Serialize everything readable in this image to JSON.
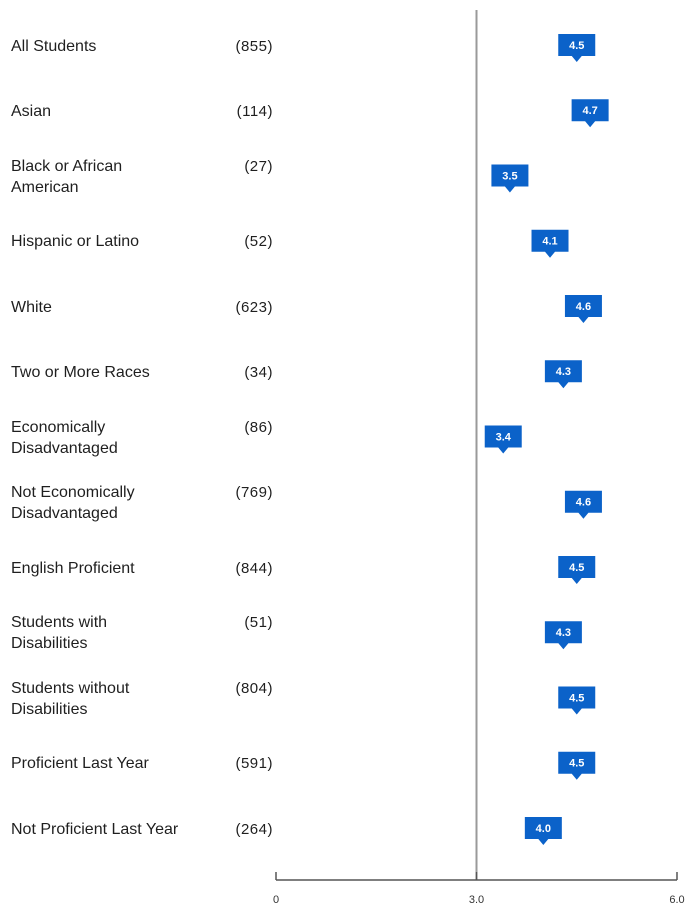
{
  "chart_data": {
    "type": "marker",
    "categories": [
      "All Students",
      "Asian",
      "Black or African American",
      "Hispanic or Latino",
      "White",
      "Two or More Races",
      "Economically Disadvantaged",
      "Not Economically Disadvantaged",
      "English Proficient",
      "Students with Disabilities",
      "Students without Disabilities",
      "Proficient Last Year",
      "Not Proficient Last Year"
    ],
    "counts": [
      "(855)",
      "(114)",
      "(27)",
      "(52)",
      "(623)",
      "(34)",
      "(86)",
      "(769)",
      "(844)",
      "(51)",
      "(804)",
      "(591)",
      "(264)"
    ],
    "values": [
      4.5,
      4.7,
      3.5,
      4.1,
      4.6,
      4.3,
      3.4,
      4.6,
      4.5,
      4.3,
      4.5,
      4.5,
      4.0
    ],
    "value_labels": [
      "4.5",
      "4.7",
      "3.5",
      "4.1",
      "4.6",
      "4.3",
      "3.4",
      "4.6",
      "4.5",
      "4.3",
      "4.5",
      "4.5",
      "4.0"
    ],
    "color": "#0b62c9",
    "xlim": [
      0,
      6
    ],
    "xticks": [
      0,
      {
        "value": 3,
        "label": "3.0"
      },
      {
        "value": 6,
        "label": "6.0"
      }
    ],
    "reference_line": 3
  }
}
